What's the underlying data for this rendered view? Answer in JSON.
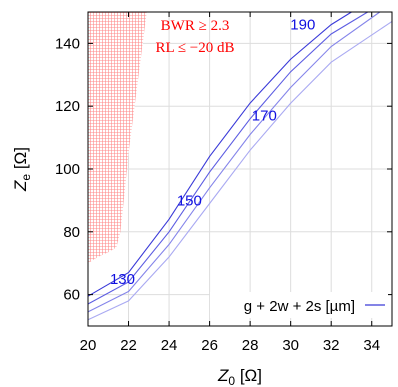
{
  "chart_data": {
    "type": "line",
    "xlabel": {
      "main": "Z",
      "sub": "0",
      "unit": "[Ω]"
    },
    "ylabel": {
      "main": "Z",
      "sub": "e",
      "unit": "[Ω]"
    },
    "xlim": [
      20,
      35
    ],
    "ylim": [
      50,
      150
    ],
    "xticks": [
      "20",
      "22",
      "24",
      "26",
      "28",
      "30",
      "32",
      "34"
    ],
    "yticks": [
      "60",
      "80",
      "100",
      "120",
      "140"
    ],
    "grid": true,
    "region": {
      "color": "#ff0000",
      "label_lines": [
        "BWR ≥ 2.3",
        "RL ≤ −20 dB"
      ],
      "boundary": [
        [
          20,
          70
        ],
        [
          20.5,
          72
        ],
        [
          21,
          73.5
        ],
        [
          21.4,
          75
        ],
        [
          21.6,
          80
        ],
        [
          21.8,
          92
        ],
        [
          22.0,
          105
        ],
        [
          22.3,
          120
        ],
        [
          22.6,
          135
        ],
        [
          22.9,
          150
        ]
      ]
    },
    "series": [
      {
        "values_xy": [
          [
            20,
            59.5
          ],
          [
            22,
            67
          ],
          [
            24,
            84
          ],
          [
            26,
            104
          ],
          [
            28,
            121
          ],
          [
            30,
            135
          ],
          [
            32,
            146
          ],
          [
            33,
            150
          ]
        ]
      },
      {
        "values_xy": [
          [
            20,
            57
          ],
          [
            22,
            64
          ],
          [
            24,
            80
          ],
          [
            26,
            99
          ],
          [
            28,
            116
          ],
          [
            30,
            131
          ],
          [
            32,
            143
          ],
          [
            33.8,
            150
          ]
        ]
      },
      {
        "values_xy": [
          [
            20,
            54.5
          ],
          [
            22,
            61
          ],
          [
            24,
            76
          ],
          [
            26,
            94
          ],
          [
            28,
            111
          ],
          [
            30,
            126
          ],
          [
            32,
            139
          ],
          [
            34.4,
            150
          ]
        ]
      },
      {
        "values_xy": [
          [
            20,
            52
          ],
          [
            22,
            58
          ],
          [
            24,
            72
          ],
          [
            26,
            89
          ],
          [
            28,
            106
          ],
          [
            30,
            121
          ],
          [
            32,
            134
          ],
          [
            35,
            147
          ]
        ]
      }
    ],
    "curve_labels": [
      {
        "text": "130",
        "x": 21.7,
        "y": 65
      },
      {
        "text": "150",
        "x": 25.0,
        "y": 90
      },
      {
        "text": "170",
        "x": 28.7,
        "y": 117
      },
      {
        "text": "190",
        "x": 30.6,
        "y": 146
      }
    ],
    "legend": {
      "label": "g + 2w + 2s [µm]",
      "position": "bottom-right"
    },
    "colors": {
      "series": [
        "#3a3ad8",
        "#5d5de2",
        "#8585ea",
        "#aaaaf2"
      ],
      "label": "#1010e0",
      "region": "#ff0000"
    }
  }
}
